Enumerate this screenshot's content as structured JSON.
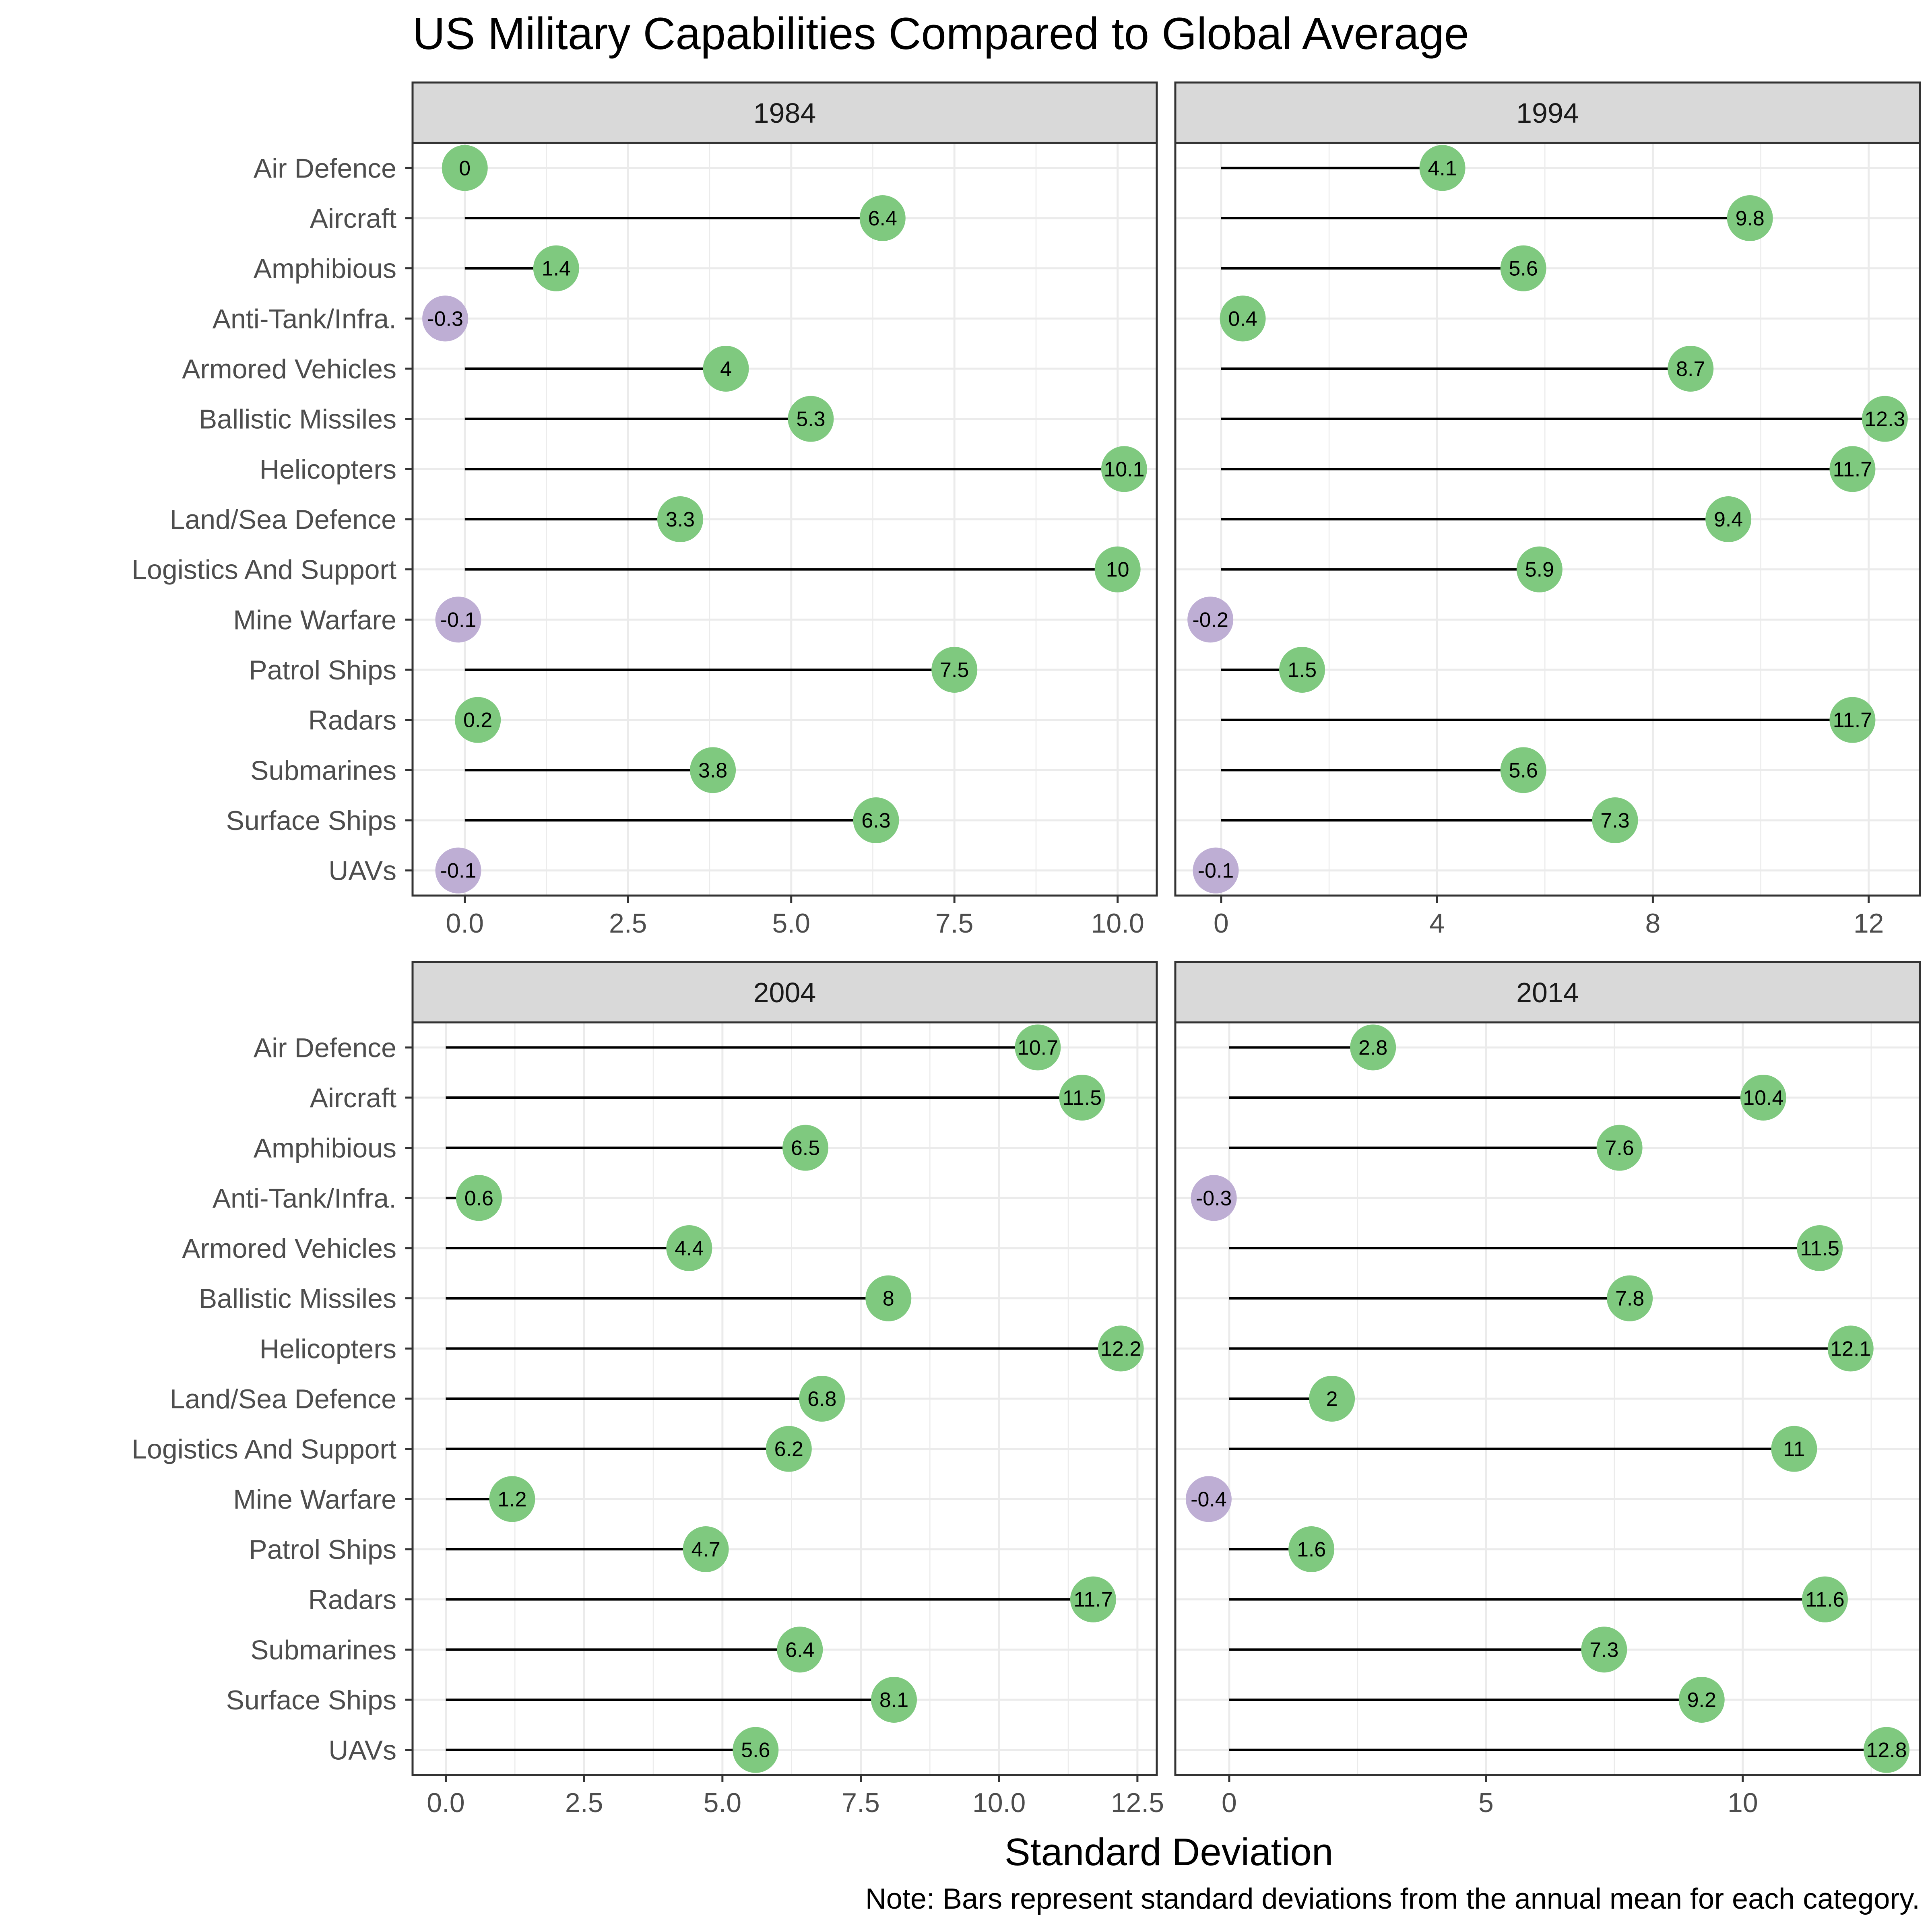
{
  "chart_data": {
    "type": "lollipop",
    "title": "US Military Capabilities Compared to Global Average",
    "xlabel": "Standard Deviation",
    "ylabel": "",
    "caption": "Note: Bars represent standard deviations from the annual mean for each category.",
    "colors": {
      "positive": "#7fc97f",
      "negative": "#beaed4",
      "segment": "#000000",
      "strip_fill": "#d9d9d9",
      "grid": "#ebebeb"
    },
    "grid": true,
    "categories": [
      "Air Defence",
      "Aircraft",
      "Amphibious",
      "Anti-Tank/Infra.",
      "Armored Vehicles",
      "Ballistic Missiles",
      "Helicopters",
      "Land/Sea Defence",
      "Logistics And Support",
      "Mine Warfare",
      "Patrol Ships",
      "Radars",
      "Submarines",
      "Surface Ships",
      "UAVs"
    ],
    "panels": [
      {
        "name": "1984",
        "xlim": [
          -0.8,
          10.6
        ],
        "ticks": [
          0,
          2.5,
          5,
          7.5,
          10
        ],
        "tick_labels": [
          "0.0",
          "2.5",
          "5.0",
          "7.5",
          "10.0"
        ],
        "values": [
          0,
          6.4,
          1.4,
          -0.3,
          4,
          5.3,
          10.1,
          3.3,
          10,
          -0.1,
          7.5,
          0.2,
          3.8,
          6.3,
          -0.1
        ],
        "value_labels": [
          "0",
          "6.4",
          "1.4",
          "-0.3",
          "4",
          "5.3",
          "10.1",
          "3.3",
          "10",
          "-0.1",
          "7.5",
          "0.2",
          "3.8",
          "6.3",
          "-0.1"
        ]
      },
      {
        "name": "1994",
        "xlim": [
          -0.85,
          12.95
        ],
        "ticks": [
          0,
          4,
          8,
          12
        ],
        "tick_labels": [
          "0",
          "4",
          "8",
          "12"
        ],
        "values": [
          4.1,
          9.8,
          5.6,
          0.4,
          8.7,
          12.3,
          11.7,
          9.4,
          5.9,
          -0.2,
          1.5,
          11.7,
          5.6,
          7.3,
          -0.1
        ],
        "value_labels": [
          "4.1",
          "9.8",
          "5.6",
          "0.4",
          "8.7",
          "12.3",
          "11.7",
          "9.4",
          "5.9",
          "-0.2",
          "1.5",
          "11.7",
          "5.6",
          "7.3",
          "-0.1"
        ]
      },
      {
        "name": "2004",
        "xlim": [
          -0.6,
          12.85
        ],
        "ticks": [
          0,
          2.5,
          5,
          7.5,
          10,
          12.5
        ],
        "tick_labels": [
          "0.0",
          "2.5",
          "5.0",
          "7.5",
          "10.0",
          "12.5"
        ],
        "values": [
          10.7,
          11.5,
          6.5,
          0.6,
          4.4,
          8,
          12.2,
          6.8,
          6.2,
          1.2,
          4.7,
          11.7,
          6.4,
          8.1,
          5.6
        ],
        "value_labels": [
          "10.7",
          "11.5",
          "6.5",
          "0.6",
          "4.4",
          "8",
          "12.2",
          "6.8",
          "6.2",
          "1.2",
          "4.7",
          "11.7",
          "6.4",
          "8.1",
          "5.6"
        ]
      },
      {
        "name": "2014",
        "xlim": [
          -1.05,
          13.45
        ],
        "ticks": [
          0,
          5,
          10
        ],
        "tick_labels": [
          "0",
          "5",
          "10"
        ],
        "values": [
          2.8,
          10.4,
          7.6,
          -0.3,
          11.5,
          7.8,
          12.1,
          2,
          11,
          -0.4,
          1.6,
          11.6,
          7.3,
          9.2,
          12.8
        ],
        "value_labels": [
          "2.8",
          "10.4",
          "7.6",
          "-0.3",
          "11.5",
          "7.8",
          "12.1",
          "2",
          "11",
          "-0.4",
          "1.6",
          "11.6",
          "7.3",
          "9.2",
          "12.8"
        ]
      }
    ]
  }
}
